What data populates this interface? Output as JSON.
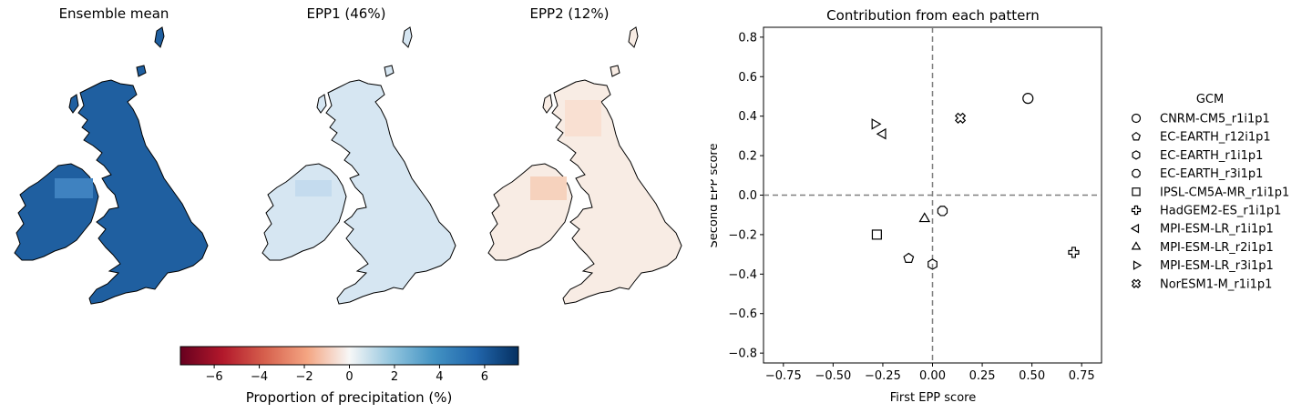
{
  "maps": {
    "titles": [
      "Ensemble mean",
      "EPP1 (46%)",
      "EPP2 (12%)"
    ],
    "colorbar": {
      "label": "Proportion of precipitation (%)",
      "ticks": [
        "−6",
        "−4",
        "−2",
        "0",
        "2",
        "4",
        "6"
      ],
      "range": [
        -7.5,
        7.5
      ],
      "colormap": "RdBu",
      "low_color": "#67001f",
      "mid_color": "#f7f7f7",
      "high_color": "#053061"
    },
    "panel_colors": {
      "ensemble_mean": "#1f5fa0",
      "ensemble_mean_ireland": "#3f82c0",
      "epp1": "#d6e6f2",
      "epp2": "#f8ece4"
    }
  },
  "chart_data": {
    "type": "scatter",
    "title": "Contribution from each pattern",
    "xlabel": "First EPP score",
    "ylabel": "Second EPP score",
    "xlim": [
      -0.85,
      0.85
    ],
    "ylim": [
      -0.85,
      0.85
    ],
    "xticks": [
      -0.75,
      -0.5,
      -0.25,
      0.0,
      0.25,
      0.5,
      0.75
    ],
    "xtick_labels": [
      "−0.75",
      "−0.50",
      "−0.25",
      "0.00",
      "0.25",
      "0.50",
      "0.75"
    ],
    "yticks": [
      -0.8,
      -0.6,
      -0.4,
      -0.2,
      0.0,
      0.2,
      0.4,
      0.6,
      0.8
    ],
    "ytick_labels": [
      "−0.8",
      "−0.6",
      "−0.4",
      "−0.2",
      "0.0",
      "0.2",
      "0.4",
      "0.6",
      "0.8"
    ],
    "reference_lines": {
      "x": 0,
      "y": 0,
      "style": "dashed"
    },
    "legend": {
      "title": "GCM",
      "placement": "outside-right"
    },
    "series": [
      {
        "name": "CNRM-CM5_r1i1p1",
        "marker": "circle",
        "x": 0.48,
        "y": 0.49
      },
      {
        "name": "EC-EARTH_r12i1p1",
        "marker": "pentagon",
        "x": -0.12,
        "y": -0.32
      },
      {
        "name": "EC-EARTH_r1i1p1",
        "marker": "hexagon",
        "x": 0.0,
        "y": -0.35
      },
      {
        "name": "EC-EARTH_r3i1p1",
        "marker": "octagon",
        "x": 0.05,
        "y": -0.08
      },
      {
        "name": "IPSL-CM5A-MR_r1i1p1",
        "marker": "square",
        "x": -0.28,
        "y": -0.2
      },
      {
        "name": "HadGEM2-ES_r1i1p1",
        "marker": "plus",
        "x": 0.71,
        "y": -0.29
      },
      {
        "name": "MPI-ESM-LR_r1i1p1",
        "marker": "triangle-left",
        "x": -0.25,
        "y": 0.31
      },
      {
        "name": "MPI-ESM-LR_r2i1p1",
        "marker": "triangle-up",
        "x": -0.04,
        "y": -0.12
      },
      {
        "name": "MPI-ESM-LR_r3i1p1",
        "marker": "triangle-right",
        "x": -0.29,
        "y": 0.36
      },
      {
        "name": "NorESM1-M_r1i1p1",
        "marker": "x-filled",
        "x": 0.14,
        "y": 0.39
      }
    ]
  }
}
